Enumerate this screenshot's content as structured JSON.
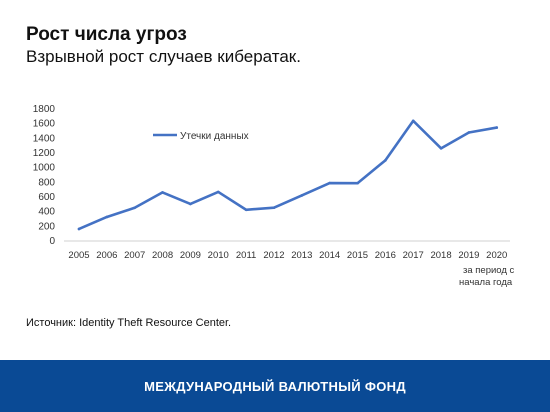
{
  "header": {
    "title": "Рост числа угроз",
    "subtitle": "Взрывной рост случаев кибератак."
  },
  "chart_data": {
    "type": "line",
    "x": [
      "2005",
      "2006",
      "2007",
      "2008",
      "2009",
      "2010",
      "2011",
      "2012",
      "2013",
      "2014",
      "2015",
      "2016",
      "2017",
      "2018",
      "2019",
      "2020"
    ],
    "series": [
      {
        "name": "Утечки данных",
        "values": [
          157,
          321,
          446,
          656,
          498,
          662,
          419,
          447,
          614,
          783,
          781,
          1093,
          1632,
          1257,
          1473,
          1540
        ]
      }
    ],
    "y_ticks": [
      0,
      200,
      400,
      600,
      800,
      1000,
      1200,
      1400,
      1600,
      1800
    ],
    "ylim": [
      0,
      1800
    ],
    "x_note_lines": [
      "за период с",
      "начала года"
    ],
    "legend_position": "top-left",
    "grid": false,
    "line_color": "#4472c4"
  },
  "source": "Источник: Identity Theft Resource Center.",
  "footer": {
    "label": "МЕЖДУНАРОДНЫЙ ВАЛЮТНЫЙ ФОНД",
    "color": "#0a4a95"
  }
}
